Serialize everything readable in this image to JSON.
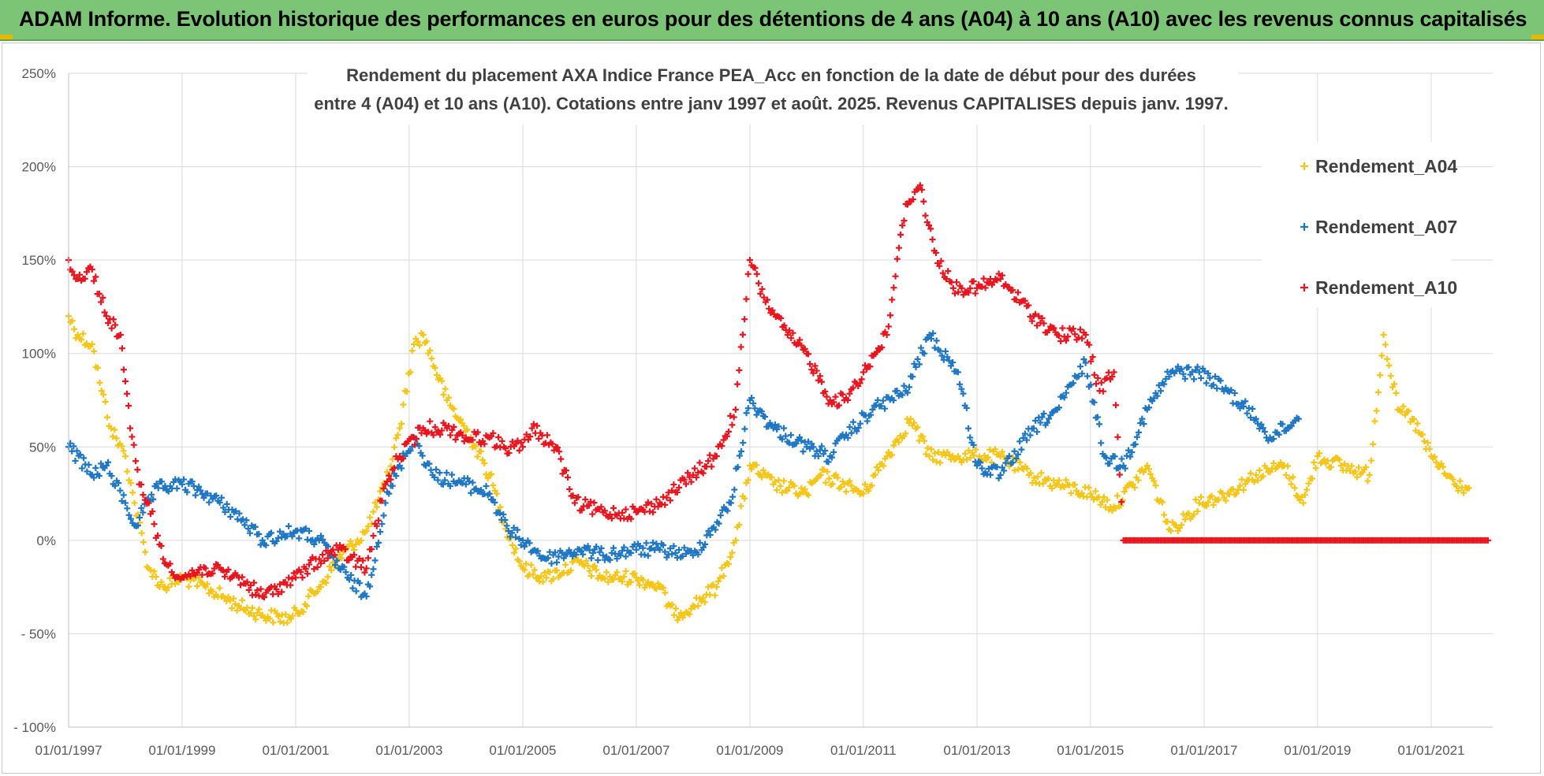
{
  "banner": {
    "title": "ADAM Informe. Evolution historique des performances en euros pour des détentions de 4 ans (A04) à 10 ans (A10) avec les revenus connus capitalisés"
  },
  "colors": {
    "banner": "#7cc576",
    "A04": "#f5c518",
    "A07": "#1f77c4",
    "A10": "#e8141e",
    "grid": "#d9d9d9",
    "axis_text": "#595959",
    "title_text": "#404040"
  },
  "chart_data": {
    "type": "scatter",
    "title_lines": [
      "Rendement du placement AXA Indice France PEA_Acc en fonction de la date de début pour des durées",
      "entre 4 (A04) et 10 ans (A10). Cotations entre janv 1997 et août. 2025. Revenus CAPITALISES depuis janv. 1997."
    ],
    "xlabel": "",
    "ylabel": "",
    "x_range": [
      "1997-01-01",
      "2022-02-01"
    ],
    "ylim": [
      -100,
      250
    ],
    "y_ticks": [
      250,
      200,
      150,
      100,
      50,
      0,
      -50,
      -100
    ],
    "y_tick_labels": [
      "250%",
      "200%",
      "150%",
      "100%",
      "50%",
      "0%",
      "- 50%",
      "- 100%"
    ],
    "x_ticks": [
      "1997-01-01",
      "1999-01-01",
      "2001-01-01",
      "2003-01-01",
      "2005-01-01",
      "2007-01-01",
      "2009-01-01",
      "2011-01-01",
      "2013-01-01",
      "2015-01-01",
      "2017-01-01",
      "2019-01-01",
      "2021-01-01"
    ],
    "x_tick_labels": [
      "01/01/1997",
      "01/01/1999",
      "01/01/2001",
      "01/01/2003",
      "01/01/2005",
      "01/01/2007",
      "01/01/2009",
      "01/01/2011",
      "01/01/2013",
      "01/01/2015",
      "01/01/2017",
      "01/01/2019",
      "01/01/2021"
    ],
    "grid": true,
    "legend_position": "top-right",
    "marker": "+",
    "series": [
      {
        "name": "Rendement_A04",
        "key": "A04",
        "points": [
          [
            "1997-01-01",
            120
          ],
          [
            "1997-03-01",
            110
          ],
          [
            "1997-06-01",
            105
          ],
          [
            "1997-08-01",
            80
          ],
          [
            "1997-10-01",
            60
          ],
          [
            "1998-01-01",
            45
          ],
          [
            "1998-03-01",
            20
          ],
          [
            "1998-06-01",
            -15
          ],
          [
            "1998-09-01",
            -25
          ],
          [
            "1999-01-01",
            -20
          ],
          [
            "1999-06-01",
            -25
          ],
          [
            "2000-01-01",
            -35
          ],
          [
            "2000-06-01",
            -40
          ],
          [
            "2000-12-01",
            -42
          ],
          [
            "2001-06-01",
            -25
          ],
          [
            "2001-10-01",
            -10
          ],
          [
            "2002-04-01",
            5
          ],
          [
            "2002-08-01",
            30
          ],
          [
            "2002-11-01",
            60
          ],
          [
            "2003-02-01",
            105
          ],
          [
            "2003-04-01",
            110
          ],
          [
            "2003-09-01",
            75
          ],
          [
            "2004-02-01",
            55
          ],
          [
            "2004-06-01",
            35
          ],
          [
            "2004-09-01",
            10
          ],
          [
            "2005-01-01",
            -15
          ],
          [
            "2005-06-01",
            -20
          ],
          [
            "2006-01-01",
            -12
          ],
          [
            "2006-06-01",
            -20
          ],
          [
            "2007-01-01",
            -20
          ],
          [
            "2007-06-01",
            -25
          ],
          [
            "2007-09-01",
            -40
          ],
          [
            "2008-01-01",
            -35
          ],
          [
            "2008-06-01",
            -25
          ],
          [
            "2008-10-01",
            0
          ],
          [
            "2009-01-01",
            40
          ],
          [
            "2009-06-01",
            30
          ],
          [
            "2010-01-01",
            25
          ],
          [
            "2010-04-01",
            35
          ],
          [
            "2010-09-01",
            30
          ],
          [
            "2011-01-01",
            25
          ],
          [
            "2011-06-01",
            45
          ],
          [
            "2011-11-01",
            65
          ],
          [
            "2012-03-01",
            45
          ],
          [
            "2012-09-01",
            45
          ],
          [
            "2013-06-01",
            45
          ],
          [
            "2013-12-01",
            35
          ],
          [
            "2014-06-01",
            30
          ],
          [
            "2015-01-01",
            25
          ],
          [
            "2015-06-01",
            18
          ],
          [
            "2015-10-01",
            30
          ],
          [
            "2016-01-01",
            40
          ],
          [
            "2016-06-01",
            5
          ],
          [
            "2016-12-01",
            20
          ],
          [
            "2017-06-01",
            25
          ],
          [
            "2017-12-01",
            35
          ],
          [
            "2018-06-01",
            40
          ],
          [
            "2018-10-01",
            20
          ],
          [
            "2019-01-01",
            45
          ],
          [
            "2019-06-01",
            40
          ],
          [
            "2019-12-01",
            35
          ],
          [
            "2020-03-01",
            110
          ],
          [
            "2020-06-01",
            70
          ],
          [
            "2020-09-01",
            65
          ],
          [
            "2021-01-01",
            45
          ],
          [
            "2021-06-01",
            30
          ],
          [
            "2021-09-01",
            28
          ]
        ]
      },
      {
        "name": "Rendement_A07",
        "key": "A07",
        "points": [
          [
            "1997-01-01",
            50
          ],
          [
            "1997-06-01",
            35
          ],
          [
            "1997-09-01",
            40
          ],
          [
            "1998-01-01",
            20
          ],
          [
            "1998-03-01",
            8
          ],
          [
            "1998-08-01",
            28
          ],
          [
            "1999-01-01",
            30
          ],
          [
            "1999-06-01",
            25
          ],
          [
            "1999-12-01",
            15
          ],
          [
            "2000-06-01",
            0
          ],
          [
            "2001-01-01",
            5
          ],
          [
            "2001-06-01",
            0
          ],
          [
            "2001-12-01",
            -20
          ],
          [
            "2002-04-01",
            -30
          ],
          [
            "2002-08-01",
            20
          ],
          [
            "2002-11-01",
            40
          ],
          [
            "2003-02-01",
            55
          ],
          [
            "2003-06-01",
            35
          ],
          [
            "2004-01-01",
            30
          ],
          [
            "2004-06-01",
            25
          ],
          [
            "2004-10-01",
            5
          ],
          [
            "2005-01-01",
            0
          ],
          [
            "2005-06-01",
            -10
          ],
          [
            "2006-01-01",
            -5
          ],
          [
            "2006-06-01",
            -8
          ],
          [
            "2007-01-01",
            -5
          ],
          [
            "2007-06-01",
            -5
          ],
          [
            "2008-01-01",
            -8
          ],
          [
            "2008-09-01",
            20
          ],
          [
            "2009-01-01",
            75
          ],
          [
            "2009-06-01",
            60
          ],
          [
            "2010-01-01",
            50
          ],
          [
            "2010-06-01",
            45
          ],
          [
            "2010-09-01",
            55
          ],
          [
            "2011-03-01",
            70
          ],
          [
            "2011-10-01",
            80
          ],
          [
            "2012-03-01",
            110
          ],
          [
            "2012-09-01",
            90
          ],
          [
            "2013-01-01",
            40
          ],
          [
            "2013-06-01",
            35
          ],
          [
            "2014-01-01",
            60
          ],
          [
            "2014-06-01",
            70
          ],
          [
            "2014-12-01",
            95
          ],
          [
            "2015-04-01",
            45
          ],
          [
            "2015-08-01",
            40
          ],
          [
            "2016-01-01",
            70
          ],
          [
            "2016-06-01",
            90
          ],
          [
            "2016-12-01",
            90
          ],
          [
            "2017-06-01",
            80
          ],
          [
            "2017-12-01",
            65
          ],
          [
            "2018-03-01",
            55
          ],
          [
            "2018-09-01",
            65
          ]
        ]
      },
      {
        "name": "Rendement_A10",
        "key": "A10",
        "points": [
          [
            "1997-01-01",
            150
          ],
          [
            "1997-03-01",
            140
          ],
          [
            "1997-06-01",
            145
          ],
          [
            "1997-09-01",
            120
          ],
          [
            "1997-12-01",
            110
          ],
          [
            "1998-02-01",
            60
          ],
          [
            "1998-04-01",
            30
          ],
          [
            "1998-06-01",
            20
          ],
          [
            "1998-09-01",
            -10
          ],
          [
            "1999-01-01",
            -20
          ],
          [
            "1999-06-01",
            -15
          ],
          [
            "2000-01-01",
            -20
          ],
          [
            "2000-06-01",
            -30
          ],
          [
            "2001-01-01",
            -20
          ],
          [
            "2001-06-01",
            -10
          ],
          [
            "2001-10-01",
            -5
          ],
          [
            "2002-04-01",
            -15
          ],
          [
            "2002-08-01",
            30
          ],
          [
            "2002-11-01",
            45
          ],
          [
            "2003-04-01",
            60
          ],
          [
            "2003-09-01",
            60
          ],
          [
            "2004-01-01",
            55
          ],
          [
            "2004-06-01",
            55
          ],
          [
            "2004-09-01",
            50
          ],
          [
            "2005-01-01",
            50
          ],
          [
            "2005-03-01",
            60
          ],
          [
            "2005-08-01",
            50
          ],
          [
            "2005-12-01",
            20
          ],
          [
            "2006-06-01",
            15
          ],
          [
            "2007-01-01",
            15
          ],
          [
            "2007-06-01",
            20
          ],
          [
            "2008-01-01",
            35
          ],
          [
            "2008-06-01",
            45
          ],
          [
            "2008-10-01",
            70
          ],
          [
            "2009-01-01",
            150
          ],
          [
            "2009-04-01",
            130
          ],
          [
            "2009-09-01",
            110
          ],
          [
            "2010-01-01",
            100
          ],
          [
            "2010-06-01",
            75
          ],
          [
            "2010-09-01",
            75
          ],
          [
            "2011-01-01",
            90
          ],
          [
            "2011-06-01",
            110
          ],
          [
            "2011-10-01",
            180
          ],
          [
            "2012-01-01",
            190
          ],
          [
            "2012-04-01",
            155
          ],
          [
            "2012-08-01",
            135
          ],
          [
            "2013-01-01",
            135
          ],
          [
            "2013-06-01",
            140
          ],
          [
            "2014-01-01",
            120
          ],
          [
            "2014-06-01",
            110
          ],
          [
            "2014-12-01",
            110
          ],
          [
            "2015-03-01",
            80
          ],
          [
            "2015-06-01",
            90
          ],
          [
            "2015-08-01",
            0
          ],
          [
            "2016-06-01",
            0
          ],
          [
            "2017-06-01",
            0
          ],
          [
            "2018-06-01",
            0
          ],
          [
            "2019-06-01",
            0
          ],
          [
            "2020-06-01",
            0
          ],
          [
            "2021-06-01",
            0
          ],
          [
            "2022-01-01",
            0
          ]
        ]
      }
    ]
  }
}
